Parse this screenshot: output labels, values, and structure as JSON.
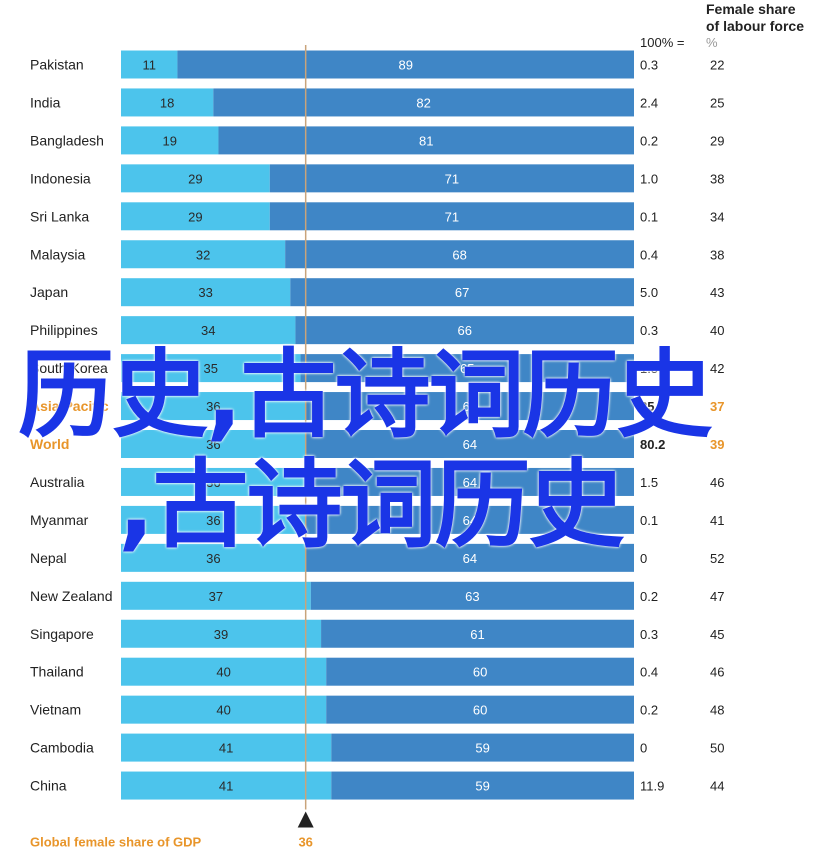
{
  "chart_data": {
    "type": "bar",
    "stacked_percent": true,
    "header": {
      "total_label": "100% =",
      "right_title": "Female share of labour force",
      "right_unit": "%"
    },
    "categories": [
      "Pakistan",
      "India",
      "Bangladesh",
      "Indonesia",
      "Sri Lanka",
      "Malaysia",
      "Japan",
      "Philippines",
      "South Korea",
      "Asia Pacific",
      "World",
      "Australia",
      "Myanmar",
      "Nepal",
      "New Zealand",
      "Singapore",
      "Thailand",
      "Vietnam",
      "Cambodia",
      "China"
    ],
    "series": [
      {
        "values": [
          11,
          18,
          19,
          29,
          29,
          32,
          33,
          34,
          35,
          36,
          36,
          36,
          36,
          36,
          37,
          39,
          40,
          40,
          41,
          41
        ]
      },
      {
        "values": [
          89,
          82,
          81,
          71,
          71,
          68,
          67,
          66,
          65,
          64,
          64,
          64,
          64,
          64,
          63,
          61,
          60,
          60,
          59,
          59
        ]
      }
    ],
    "totals": [
      "0.3",
      "2.4",
      "0.2",
      "1.0",
      "0.1",
      "0.4",
      "5.0",
      "0.3",
      "1.5",
      "25.8",
      "80.2",
      "1.5",
      "0.1",
      "0",
      "0.2",
      "0.3",
      "0.4",
      "0.2",
      "0",
      "11.9"
    ],
    "female_labour_share": [
      22,
      25,
      29,
      38,
      34,
      38,
      43,
      40,
      42,
      37,
      39,
      46,
      41,
      52,
      47,
      45,
      46,
      48,
      50,
      44
    ],
    "highlighted_categories": [
      "Asia Pacific",
      "World"
    ],
    "reference_line": {
      "value": 36,
      "label": "Global female share of GDP",
      "value_label": "36"
    },
    "xlim": [
      0,
      100
    ],
    "colors": {
      "female": "#4cc4ec",
      "male": "#3f86c6",
      "highlight": "#e8952a",
      "reference": "#c9a47a",
      "text": "#222222"
    }
  },
  "overlay": {
    "line1": "历史,古诗词历史",
    "line2": ",古诗词历史"
  }
}
